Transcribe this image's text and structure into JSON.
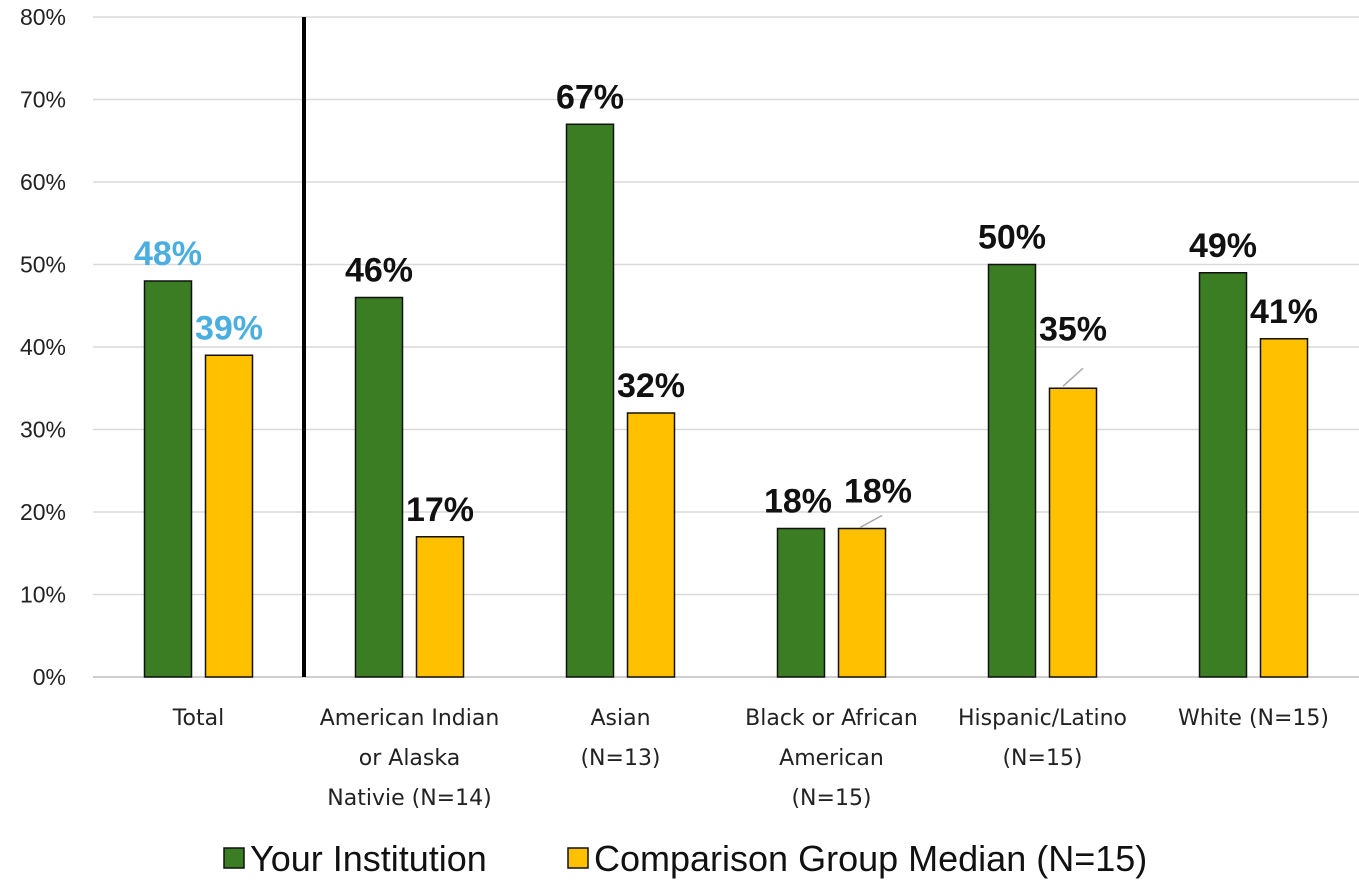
{
  "chart_data": {
    "type": "bar",
    "title": "",
    "xlabel": "",
    "ylabel": "",
    "ylim": [
      0,
      80
    ],
    "yticks": [
      "0%",
      "10%",
      "20%",
      "30%",
      "40%",
      "50%",
      "60%",
      "70%",
      "80%"
    ],
    "grid": true,
    "categories": [
      [
        "Total"
      ],
      [
        "American Indian",
        "or Alaska",
        "Nativie (N=14)"
      ],
      [
        "Asian",
        "(N=13)"
      ],
      [
        "Black or African",
        "American",
        "(N=15)"
      ],
      [
        "Hispanic/Latino",
        "(N=15)"
      ],
      [
        "White (N=15)"
      ]
    ],
    "series": [
      {
        "name": "Your Institution",
        "color": "#3b7d23",
        "values": [
          48,
          46,
          67,
          18,
          50,
          49
        ],
        "labels": [
          "48%",
          "46%",
          "67%",
          "18%",
          "50%",
          "49%"
        ]
      },
      {
        "name": "Comparison Group Median (N=15)",
        "color": "#ffc000",
        "values": [
          39,
          17,
          32,
          18,
          35,
          41
        ],
        "labels": [
          "39%",
          "17%",
          "32%",
          "18%",
          "35%",
          "41%"
        ]
      }
    ],
    "label_colors": {
      "highlight": "#4aaee0",
      "default": "#111111"
    },
    "highlight_category_index": 0,
    "separator_after_category": 0,
    "legend_position": "bottom"
  }
}
